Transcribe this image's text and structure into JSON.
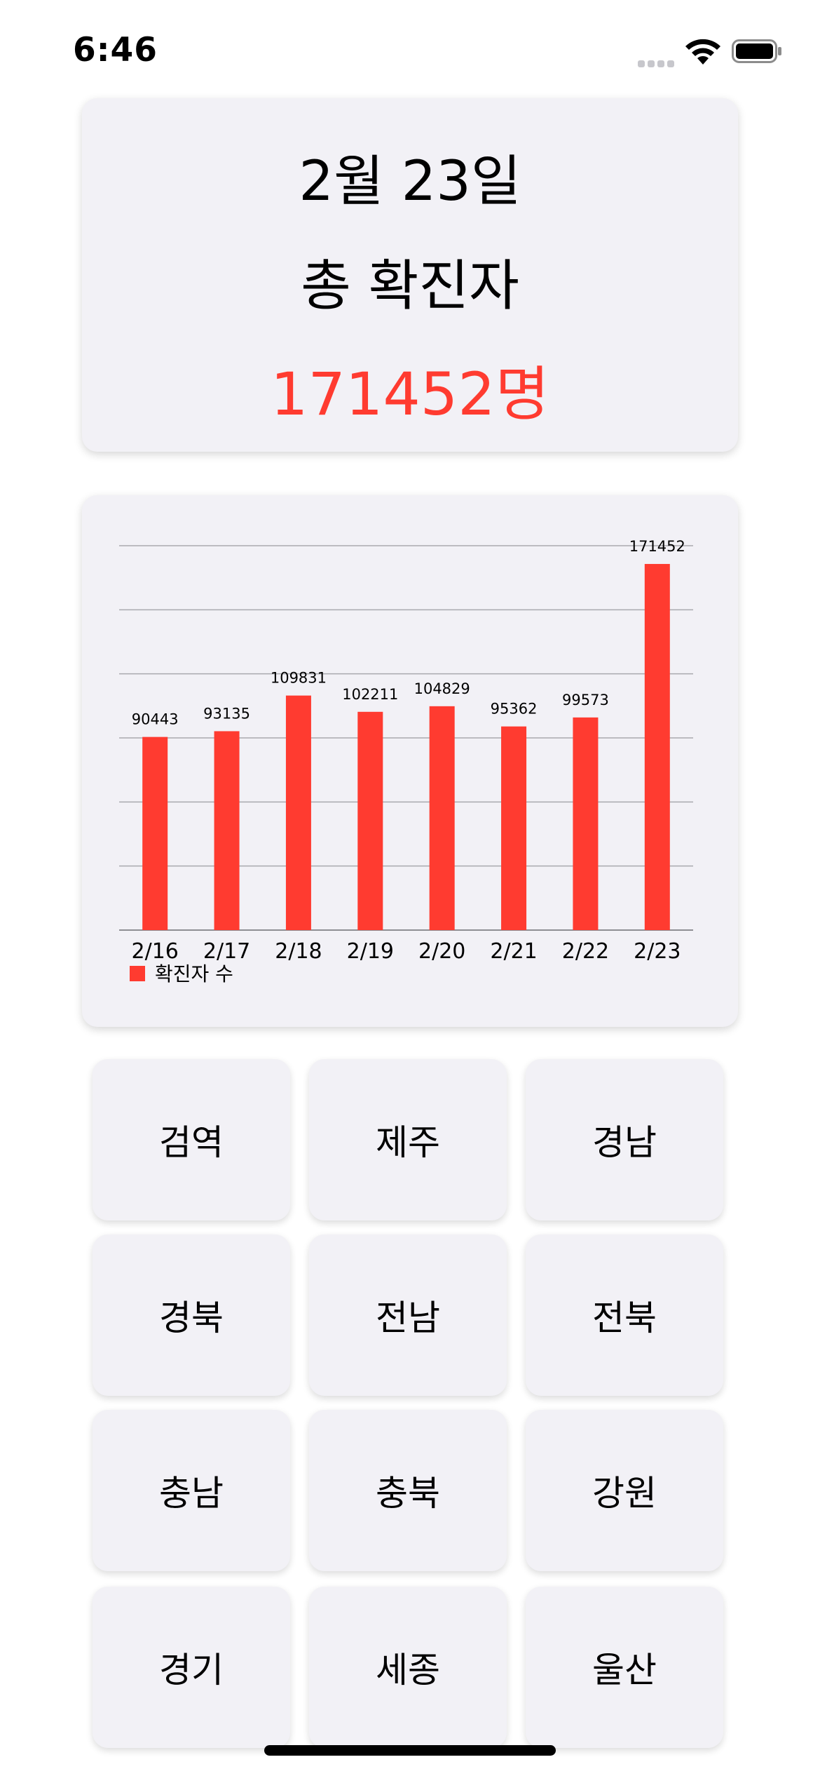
{
  "status_bar": {
    "time": "6:46",
    "icons": [
      "signal-icon",
      "wifi-icon",
      "battery-icon"
    ]
  },
  "summary": {
    "date": "2월 23일",
    "label": "총 확진자",
    "count": "171452명",
    "count_color": "#ff3b30"
  },
  "chart_data": {
    "type": "bar",
    "categories": [
      "2/16",
      "2/17",
      "2/18",
      "2/19",
      "2/20",
      "2/21",
      "2/22",
      "2/23"
    ],
    "series": [
      {
        "name": "확진자 수",
        "values": [
          90443,
          93135,
          109831,
          102211,
          104829,
          95362,
          99573,
          171452
        ],
        "color": "#ff3b30"
      }
    ],
    "data_labels": [
      "90443",
      "93135",
      "109831",
      "102211",
      "104829",
      "95362",
      "99573",
      "171452"
    ],
    "ylim": [
      0,
      180000
    ],
    "grid": true,
    "legend": "bottom-left",
    "legend_label": "확진자 수"
  },
  "regions": [
    "검역",
    "제주",
    "경남",
    "경북",
    "전남",
    "전북",
    "충남",
    "충북",
    "강원",
    "경기",
    "세종",
    "울산"
  ]
}
